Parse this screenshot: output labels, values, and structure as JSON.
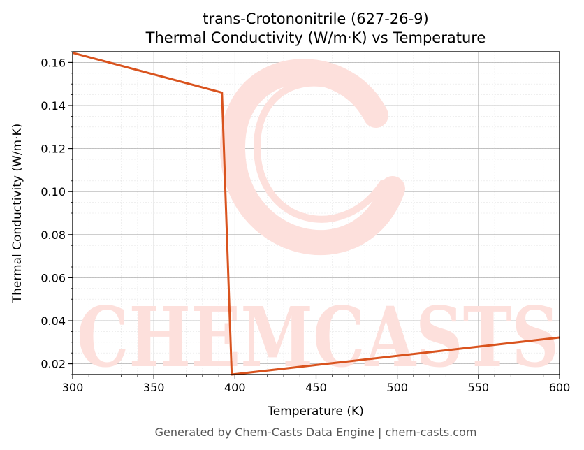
{
  "chart_data": {
    "type": "line",
    "title": "trans-Crotononitrile (627-26-9)",
    "subtitle": "Thermal Conductivity (W/m·K) vs Temperature",
    "xlabel": "Temperature (K)",
    "ylabel": "Thermal Conductivity (W/m·K)",
    "xlim": [
      300,
      600
    ],
    "ylim": [
      0.015,
      0.165
    ],
    "xticks": [
      300,
      350,
      400,
      450,
      500,
      550,
      600
    ],
    "yticks": [
      0.02,
      0.04,
      0.06,
      0.08,
      0.1,
      0.12,
      0.14,
      0.16
    ],
    "xtick_labels": [
      "300",
      "350",
      "400",
      "450",
      "500",
      "550",
      "600"
    ],
    "ytick_labels": [
      "0.02",
      "0.04",
      "0.06",
      "0.08",
      "0.10",
      "0.12",
      "0.14",
      "0.16"
    ],
    "grid": true,
    "minor_grid": true,
    "series": [
      {
        "color": "#d9531e",
        "x": [
          300,
          392,
          398,
          600
        ],
        "y": [
          0.1645,
          0.146,
          0.015,
          0.0322
        ]
      }
    ]
  },
  "watermark": {
    "text": "CHEMCASTS",
    "color": "#fde0dc"
  },
  "footer": "Generated by Chem-Casts Data Engine | chem-casts.com"
}
